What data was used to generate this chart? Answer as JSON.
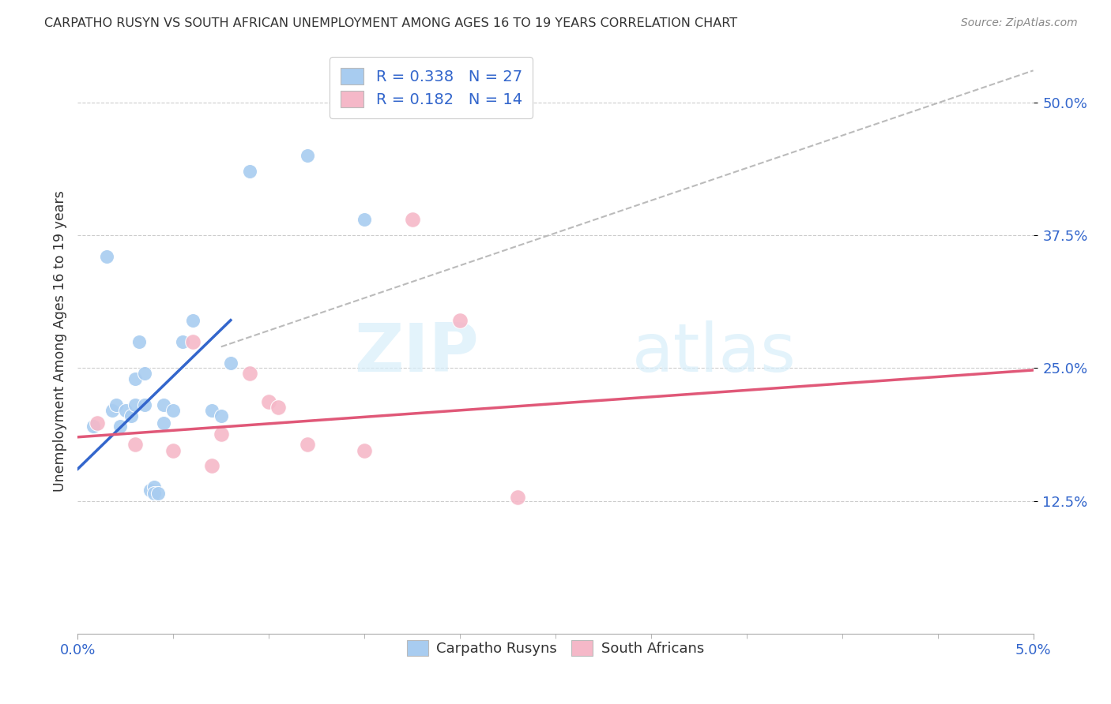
{
  "title": "CARPATHO RUSYN VS SOUTH AFRICAN UNEMPLOYMENT AMONG AGES 16 TO 19 YEARS CORRELATION CHART",
  "source": "Source: ZipAtlas.com",
  "ylabel": "Unemployment Among Ages 16 to 19 years",
  "xlim": [
    0.0,
    0.05
  ],
  "ylim": [
    0.0,
    0.55
  ],
  "yticks": [
    0.125,
    0.25,
    0.375,
    0.5
  ],
  "ytick_labels": [
    "12.5%",
    "25.0%",
    "37.5%",
    "50.0%"
  ],
  "legend_r1": "R = 0.338",
  "legend_n1": "N = 27",
  "legend_r2": "R = 0.182",
  "legend_n2": "N = 14",
  "blue_color": "#A8CCF0",
  "pink_color": "#F5B8C8",
  "blue_line_color": "#3366CC",
  "pink_line_color": "#E05878",
  "dashed_line_color": "#BBBBBB",
  "watermark_zip": "ZIP",
  "watermark_atlas": "atlas",
  "blue_dots_x": [
    0.0008,
    0.0015,
    0.0018,
    0.002,
    0.0022,
    0.0025,
    0.0028,
    0.003,
    0.003,
    0.0032,
    0.0035,
    0.0035,
    0.0038,
    0.004,
    0.004,
    0.0042,
    0.0045,
    0.0045,
    0.005,
    0.0055,
    0.006,
    0.007,
    0.0075,
    0.008,
    0.009,
    0.012,
    0.015
  ],
  "blue_dots_y": [
    0.195,
    0.355,
    0.21,
    0.215,
    0.195,
    0.21,
    0.205,
    0.24,
    0.215,
    0.275,
    0.245,
    0.215,
    0.135,
    0.138,
    0.132,
    0.132,
    0.215,
    0.198,
    0.21,
    0.275,
    0.295,
    0.21,
    0.205,
    0.255,
    0.435,
    0.45,
    0.39
  ],
  "pink_dots_x": [
    0.001,
    0.003,
    0.005,
    0.006,
    0.007,
    0.0075,
    0.009,
    0.01,
    0.0105,
    0.012,
    0.015,
    0.0175,
    0.02,
    0.023
  ],
  "pink_dots_y": [
    0.198,
    0.178,
    0.172,
    0.275,
    0.158,
    0.188,
    0.245,
    0.218,
    0.213,
    0.178,
    0.172,
    0.39,
    0.295,
    0.128
  ],
  "blue_line_x": [
    0.0,
    0.008
  ],
  "blue_line_y": [
    0.155,
    0.295
  ],
  "pink_line_x": [
    0.0,
    0.05
  ],
  "pink_line_y": [
    0.185,
    0.248
  ],
  "dash_line_x": [
    0.0075,
    0.05
  ],
  "dash_line_y": [
    0.27,
    0.53
  ]
}
